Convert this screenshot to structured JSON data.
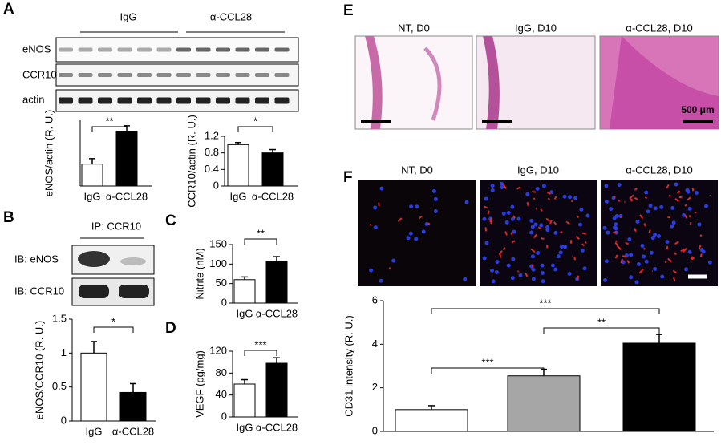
{
  "panels": {
    "a": "A",
    "b": "B",
    "c": "C",
    "d": "D",
    "e": "E",
    "f": "F"
  },
  "blot_a": {
    "groups": [
      "IgG",
      "α-CCL28"
    ],
    "rows": [
      "eNOS",
      "CCR10",
      "actin"
    ]
  },
  "blot_b": {
    "ip": "IP: CCR10",
    "rows": [
      "IB: eNOS",
      "IB: CCR10"
    ]
  },
  "images_e": {
    "captions": [
      "NT, D0",
      "IgG, D10",
      "α-CCL28, D10"
    ],
    "scale": "500 μm"
  },
  "images_f": {
    "captions": [
      "NT, D0",
      "IgG, D10",
      "α-CCL28, D10"
    ]
  },
  "chart_data": [
    {
      "type": "bar",
      "ylabel": "eNOS/actin (R. U.)",
      "categories": [
        "IgG",
        "α-CCL28"
      ],
      "values": [
        1.0,
        2.5
      ],
      "errors": [
        0.25,
        0.25
      ],
      "colors": [
        "#ffffff",
        "#000000"
      ],
      "ylim": [
        0,
        3
      ],
      "annotations": [
        "**"
      ]
    },
    {
      "type": "bar",
      "ylabel": "CCR10/actin (R. U.)",
      "categories": [
        "IgG",
        "α-CCL28"
      ],
      "values": [
        1.0,
        0.8
      ],
      "errors": [
        0.05,
        0.08
      ],
      "colors": [
        "#ffffff",
        "#000000"
      ],
      "ylim": [
        0,
        1.2
      ],
      "yticks": [
        0,
        0.4,
        0.8,
        1.2
      ],
      "annotations": [
        "*"
      ]
    },
    {
      "type": "bar",
      "ylabel": "eNOS/CCR10 (R. U.)",
      "categories": [
        "IgG",
        "α-CCL28"
      ],
      "values": [
        1.0,
        0.42
      ],
      "errors": [
        0.17,
        0.13
      ],
      "colors": [
        "#ffffff",
        "#000000"
      ],
      "ylim": [
        0,
        1.5
      ],
      "yticks": [
        0,
        0.5,
        1,
        1.5
      ],
      "annotations": [
        "*"
      ]
    },
    {
      "type": "bar",
      "ylabel": "Nitrite (nM)",
      "categories": [
        "IgG",
        "α-CCL28"
      ],
      "values": [
        60,
        107
      ],
      "errors": [
        7,
        12
      ],
      "colors": [
        "#ffffff",
        "#000000"
      ],
      "ylim": [
        0,
        150
      ],
      "yticks": [
        0,
        50,
        100,
        150
      ],
      "annotations": [
        "**"
      ]
    },
    {
      "type": "bar",
      "ylabel": "VEGF (pg/mg)",
      "categories": [
        "IgG",
        "α-CCL28"
      ],
      "values": [
        60,
        98
      ],
      "errors": [
        8,
        10
      ],
      "colors": [
        "#ffffff",
        "#000000"
      ],
      "ylim": [
        0,
        120
      ],
      "yticks": [
        0,
        40,
        80,
        120
      ],
      "annotations": [
        "***"
      ]
    },
    {
      "type": "bar",
      "ylabel": "CD31 intensity (R. U.)",
      "categories": [
        null,
        null,
        null
      ],
      "values": [
        1.0,
        2.55,
        4.05
      ],
      "errors": [
        0.18,
        0.3,
        0.4
      ],
      "colors": [
        "#ffffff",
        "#a6a6a6",
        "#000000"
      ],
      "ylim": [
        0,
        6
      ],
      "yticks": [
        0,
        2,
        4,
        6
      ],
      "annotations": [
        "***",
        "**",
        "***"
      ]
    }
  ]
}
